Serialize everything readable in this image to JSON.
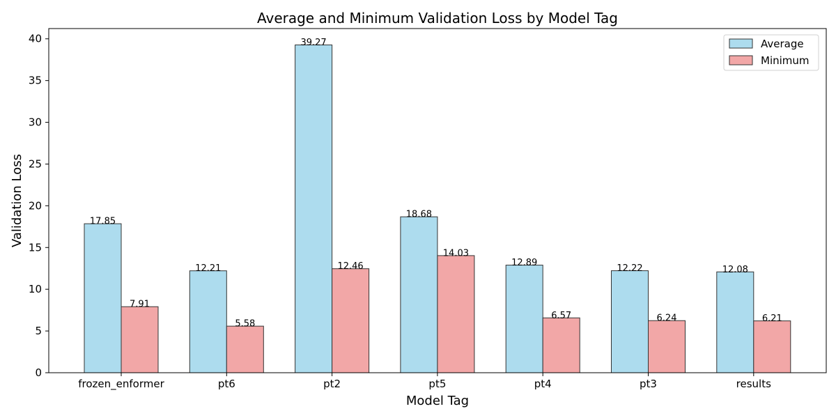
{
  "chart_data": {
    "type": "bar",
    "title": "Average and Minimum Validation Loss by Model Tag",
    "xlabel": "Model Tag",
    "ylabel": "Validation Loss",
    "categories": [
      "frozen_enformer",
      "pt6",
      "pt2",
      "pt5",
      "pt4",
      "pt3",
      "results"
    ],
    "series": [
      {
        "name": "Average",
        "values": [
          17.85,
          12.21,
          39.27,
          18.68,
          12.89,
          12.22,
          12.08
        ],
        "labels": [
          "17.85",
          "12.21",
          "39.27",
          "18.68",
          "12.89",
          "12.22",
          "12.08"
        ],
        "color": "#ADDCEE"
      },
      {
        "name": "Minimum",
        "values": [
          7.91,
          5.58,
          12.46,
          14.03,
          6.57,
          6.24,
          6.21
        ],
        "labels": [
          "7.91",
          "5.58",
          "12.46",
          "14.03",
          "6.57",
          "6.24",
          "6.21"
        ],
        "color": "#F2A7A7"
      }
    ],
    "yticks": [
      0,
      5,
      10,
      15,
      20,
      25,
      30,
      35,
      40
    ],
    "ylim": [
      0,
      41.23
    ],
    "grid": false,
    "legend_position": "top-right"
  }
}
